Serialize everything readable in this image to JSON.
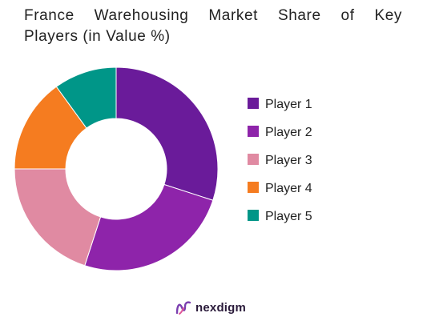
{
  "title_line_1": [
    "France",
    "Warehousing",
    "Market",
    "Share",
    "of",
    "Key"
  ],
  "title_line_2": "Players (in Value %)",
  "brand": {
    "name": "nexdigm",
    "logo_icon": "nexdigm-logo-icon"
  },
  "chart_data": {
    "type": "pie",
    "style": "donut",
    "title": "France Warehousing Market Share of Key Players (in Value %)",
    "categories": [
      "Player 1",
      "Player 2",
      "Player 3",
      "Player 4",
      "Player 5"
    ],
    "values": [
      30,
      25,
      20,
      15,
      10
    ],
    "colors": [
      "#6a1b9a",
      "#8e24aa",
      "#e08aa2",
      "#f57c20",
      "#009688"
    ],
    "legend_position": "right"
  }
}
